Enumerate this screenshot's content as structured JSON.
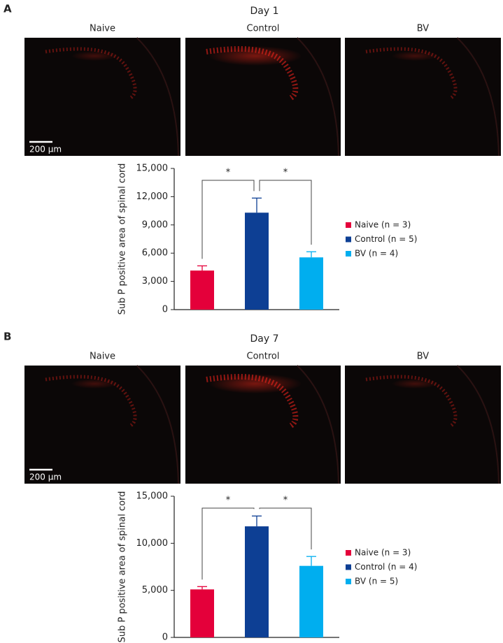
{
  "chart_data": [
    {
      "type": "bar",
      "panel": "A",
      "title": "Day 1",
      "image_labels": [
        "Naive",
        "Control",
        "BV"
      ],
      "scale_bar": "200 μm",
      "ylabel": "Sub P positive area of spinal cord",
      "categories": [
        "Naive",
        "Control",
        "BV"
      ],
      "values": [
        4150,
        10300,
        5550
      ],
      "errors": [
        500,
        1550,
        600
      ],
      "colors": [
        "#e4003a",
        "#0d3f94",
        "#00aeef"
      ],
      "legend": [
        "Naive (n = 3)",
        "Control (n = 5)",
        "BV (n = 4)"
      ],
      "annotations": [
        "*",
        "*"
      ],
      "ylim": [
        0,
        15000
      ],
      "yticks": [
        0,
        {
          "value": 3000,
          "label": "3,000"
        },
        {
          "value": 6000,
          "label": "6,000"
        },
        {
          "value": 9000,
          "label": "9,000"
        },
        {
          "value": 12000,
          "label": "12,000"
        },
        {
          "value": 15000,
          "label": "15,000"
        }
      ]
    },
    {
      "type": "bar",
      "panel": "B",
      "title": "Day 7",
      "image_labels": [
        "Naive",
        "Control",
        "BV"
      ],
      "scale_bar": "200 μm",
      "ylabel": "Sub P positive area of spinal cord",
      "categories": [
        "Naive",
        "Control",
        "BV"
      ],
      "values": [
        5100,
        11800,
        7600
      ],
      "errors": [
        300,
        1100,
        1000
      ],
      "colors": [
        "#e4003a",
        "#0d3f94",
        "#00aeef"
      ],
      "legend": [
        "Naive (n = 3)",
        "Control (n = 4)",
        "BV (n = 5)"
      ],
      "annotations": [
        "*",
        "*"
      ],
      "ylim": [
        0,
        15000
      ],
      "yticks": [
        0,
        {
          "value": 5000,
          "label": "5,000"
        },
        {
          "value": 10000,
          "label": "10,000"
        },
        {
          "value": 15000,
          "label": "15,000"
        }
      ]
    }
  ]
}
